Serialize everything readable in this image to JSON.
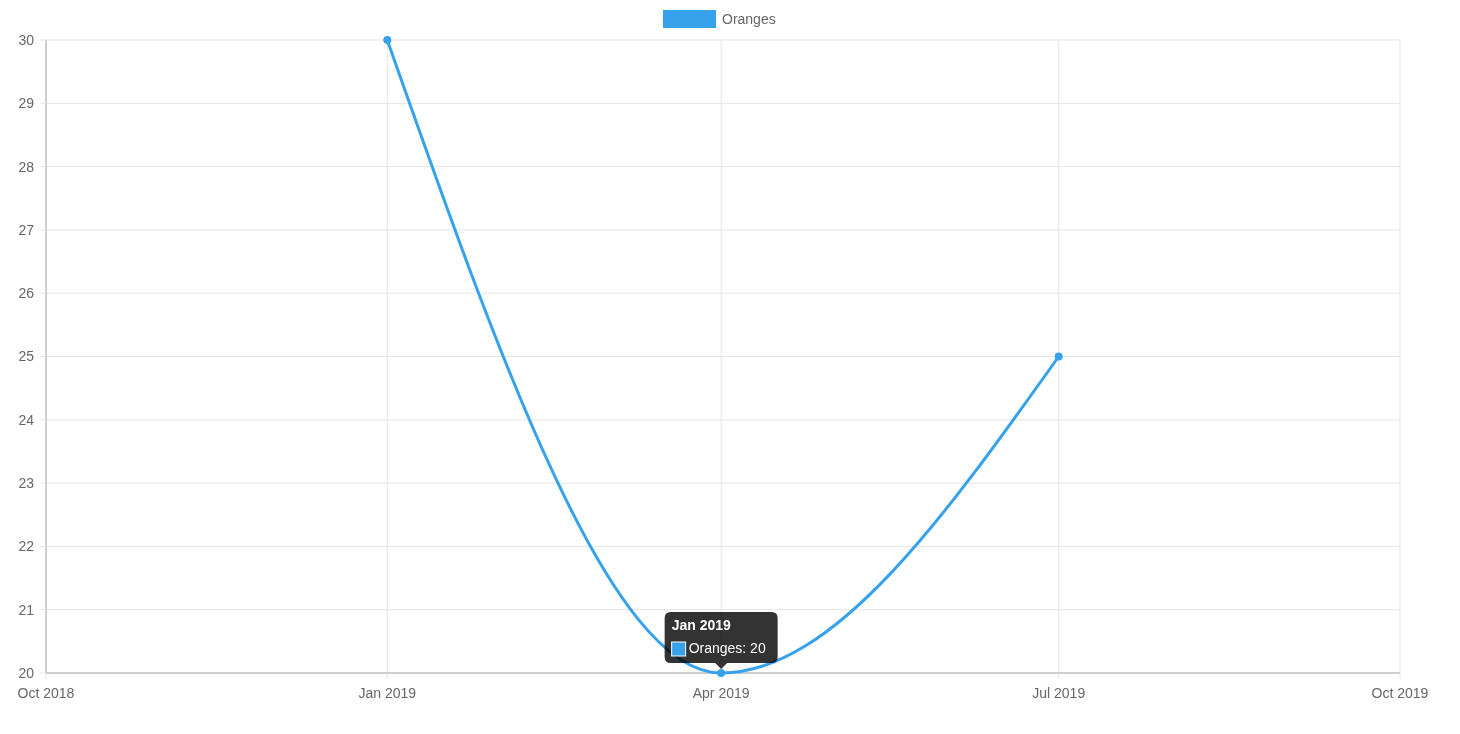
{
  "chart_data": {
    "type": "line",
    "x": [
      "2019-01",
      "2019-04",
      "2019-07"
    ],
    "series": [
      {
        "name": "Oranges",
        "color": "#36a2eb",
        "values": [
          30,
          20,
          25
        ]
      }
    ],
    "xlim": [
      "2018-10",
      "2019-10"
    ],
    "xticks": [
      {
        "value": "2018-10",
        "label": "Oct 2018"
      },
      {
        "value": "2019-01",
        "label": "Jan 2019"
      },
      {
        "value": "2019-04",
        "label": "Apr 2019"
      },
      {
        "value": "2019-07",
        "label": "Jul 2019"
      },
      {
        "value": "2019-10",
        "label": "Oct 2019"
      }
    ],
    "ylim": [
      20,
      30
    ],
    "yticks": [
      20,
      21,
      22,
      23,
      24,
      25,
      26,
      27,
      28,
      29,
      30
    ],
    "grid": true,
    "legend": "top",
    "marker": "circle",
    "line_style": "solid",
    "annotations": [
      {
        "text": "Jan 2019\nOranges: 20",
        "x": "2019-04",
        "y": 20
      }
    ]
  }
}
